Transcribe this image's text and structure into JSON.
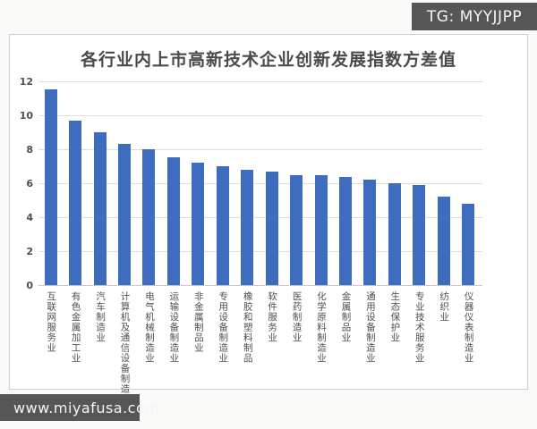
{
  "watermarks": {
    "telegram": "TG: MYYJJPP",
    "website": "www.miyafusa.com"
  },
  "chart_data": {
    "type": "bar",
    "title": "各行业内上市高新技术企业创新发展指数方差值",
    "categories": [
      "互联网服务业",
      "有色金属加工业",
      "汽车制造业",
      "计算机及通信设备制造",
      "电气机械制造业",
      "运输设备制造业",
      "非金属制品业",
      "专用设备制造业",
      "橡胶和塑料制品",
      "软件服务业",
      "医药制造业",
      "化学原料制造业",
      "金属制品业",
      "通用设备制造业",
      "生态保护业",
      "专业技术服务业",
      "纺织业",
      "仪器仪表制造业"
    ],
    "values": [
      11.5,
      9.7,
      9.0,
      8.3,
      8.0,
      7.5,
      7.2,
      7.0,
      6.8,
      6.7,
      6.5,
      6.45,
      6.35,
      6.2,
      6.0,
      5.9,
      5.2,
      4.8
    ],
    "xlabel": "",
    "ylabel": "",
    "ylim": [
      0,
      12
    ],
    "yticks": [
      0,
      2,
      4,
      6,
      8,
      10,
      12
    ],
    "grid": true,
    "legend": false,
    "bar_color": "#3e6dbf",
    "x_label_orientation": "vertical-upright"
  },
  "colors": {
    "page_bg": "#fafaf9",
    "card_bg": "#ffffff",
    "card_border": "#cfcfcf",
    "grid_line": "#dedede",
    "axis_line": "#c9c9c9",
    "axis_text": "#4f4f4f",
    "title_text": "#4a4a4a",
    "bar": "#3e6dbf",
    "badge_bg": "#565656",
    "badge_text": "#f5f5f5"
  }
}
